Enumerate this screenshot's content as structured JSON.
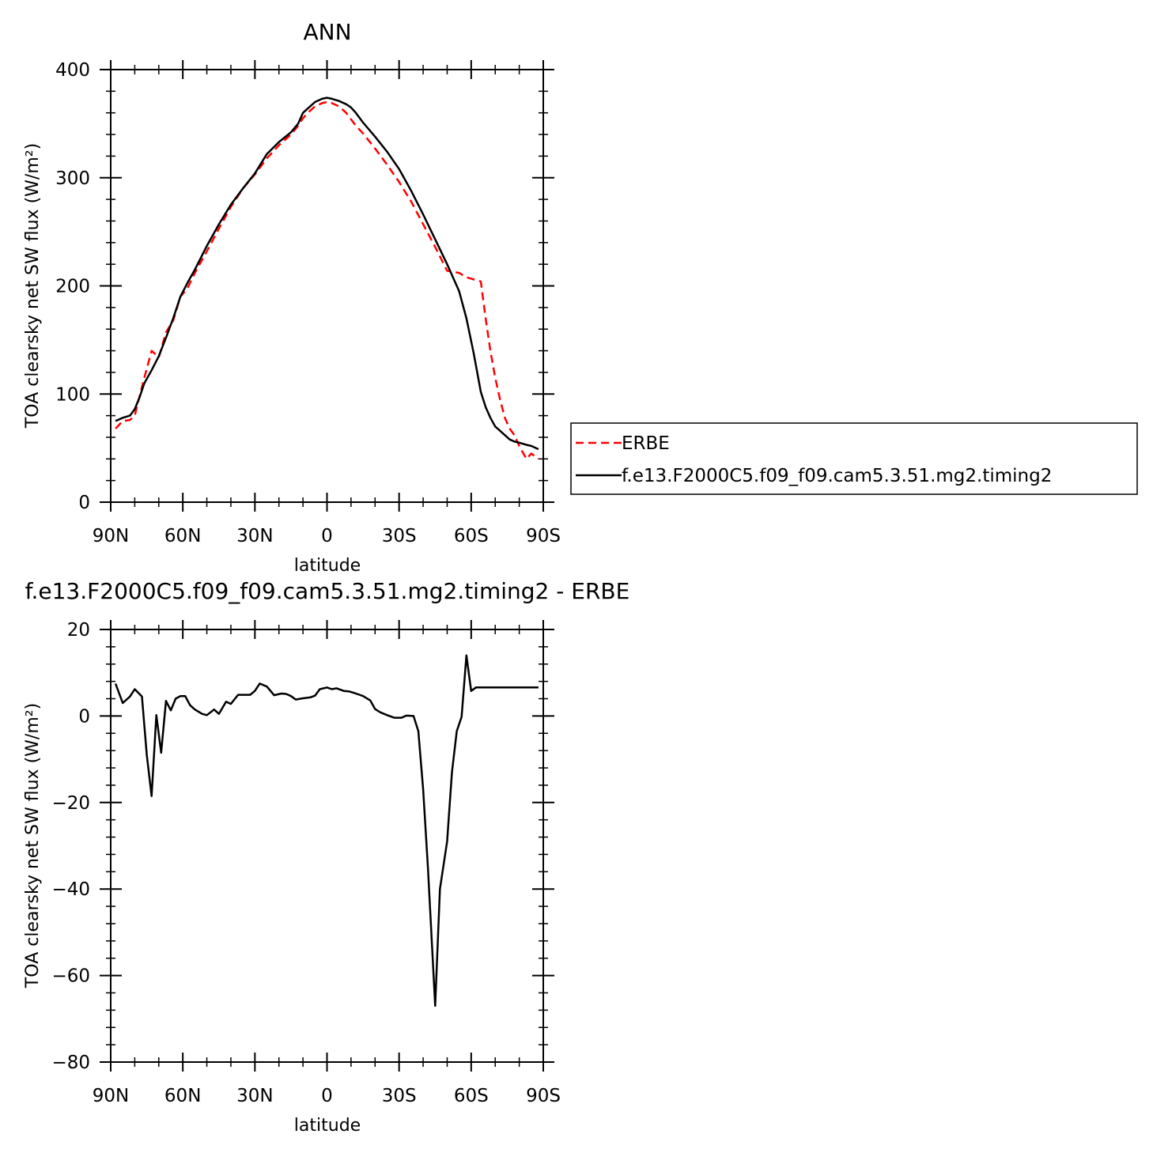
{
  "chart_data": [
    {
      "type": "line",
      "title": "ANN",
      "xlabel": "latitude",
      "ylabel": "TOA clearsky net SW flux (W/m²)",
      "xlim": [
        90,
        -90
      ],
      "ylim": [
        0,
        400
      ],
      "x_ticks": [
        90,
        60,
        30,
        0,
        -30,
        -60,
        -90
      ],
      "x_tick_labels": [
        "90N",
        "60N",
        "30N",
        "0",
        "30S",
        "60S",
        "90S"
      ],
      "y_ticks": [
        0,
        100,
        200,
        300,
        400
      ],
      "y_tick_labels": [
        "0",
        "100",
        "200",
        "300",
        "400"
      ],
      "legend_position": "right",
      "series": [
        {
          "name": "ERBE",
          "color": "#ff0000",
          "dash": "dashed",
          "x": [
            88,
            85,
            82,
            80,
            78,
            76,
            73,
            70,
            67,
            64,
            61,
            58,
            55,
            50,
            45,
            40,
            35,
            30,
            25,
            20,
            15,
            12,
            10,
            8,
            5,
            2,
            0,
            -2,
            -5,
            -8,
            -10,
            -12,
            -15,
            -20,
            -25,
            -30,
            -35,
            -40,
            -45,
            -50,
            -55,
            -58,
            -61,
            -64,
            -66,
            -68,
            -70,
            -72,
            -74,
            -76,
            -78,
            -80,
            -83,
            -85,
            -88
          ],
          "y": [
            68,
            75,
            76,
            80,
            98,
            115,
            140,
            134,
            157,
            168,
            190,
            198,
            212,
            232,
            253,
            273,
            290,
            303,
            318,
            330,
            340,
            348,
            355,
            360,
            366,
            369,
            370,
            369,
            366,
            360,
            354,
            348,
            341,
            327,
            312,
            296,
            278,
            257,
            236,
            214,
            212,
            208,
            206,
            204,
            170,
            140,
            115,
            95,
            78,
            68,
            62,
            52,
            40,
            45,
            40
          ]
        },
        {
          "name": "f.e13.F2000C5.f09_f09.cam5.3.51.mg2.timing2",
          "color": "#000000",
          "dash": "solid",
          "x": [
            88,
            85,
            82,
            80,
            78,
            76,
            73,
            70,
            67,
            64,
            61,
            58,
            55,
            50,
            45,
            40,
            35,
            30,
            25,
            20,
            15,
            12,
            10,
            8,
            5,
            2,
            0,
            -2,
            -5,
            -8,
            -10,
            -12,
            -15,
            -20,
            -25,
            -30,
            -35,
            -40,
            -45,
            -50,
            -55,
            -58,
            -61,
            -64,
            -66,
            -68,
            -70,
            -72,
            -74,
            -76,
            -78,
            -80,
            -83,
            -85,
            -88
          ],
          "y": [
            75,
            78,
            80,
            86,
            97,
            110,
            122,
            135,
            152,
            170,
            190,
            203,
            215,
            237,
            257,
            275,
            290,
            304,
            322,
            333,
            342,
            350,
            360,
            364,
            370,
            373,
            374,
            373,
            371,
            368,
            365,
            360,
            351,
            338,
            324,
            308,
            288,
            266,
            243,
            220,
            195,
            170,
            138,
            102,
            88,
            78,
            70,
            66,
            62,
            58,
            56,
            55,
            53,
            52,
            49
          ]
        }
      ]
    },
    {
      "type": "line",
      "title": "f.e13.F2000C5.f09_f09.cam5.3.51.mg2.timing2 - ERBE",
      "xlabel": "latitude",
      "ylabel": "TOA clearsky net SW flux (W/m²)",
      "xlim": [
        90,
        -90
      ],
      "ylim": [
        -80,
        20
      ],
      "x_ticks": [
        90,
        60,
        30,
        0,
        -30,
        -60,
        -90
      ],
      "x_tick_labels": [
        "90N",
        "60N",
        "30N",
        "0",
        "30S",
        "60S",
        "90S"
      ],
      "y_ticks": [
        -80,
        -60,
        -40,
        -20,
        0,
        20
      ],
      "y_tick_labels": [
        "−80",
        "−60",
        "−40",
        "−20",
        "0",
        "20"
      ],
      "series": [
        {
          "color": "#000000",
          "dash": "solid",
          "x": [
            88,
            85,
            82,
            80,
            77,
            75,
            73,
            71,
            69,
            67,
            65,
            63,
            61,
            59,
            57,
            55,
            52,
            50,
            47,
            45,
            42,
            40,
            37,
            35,
            32,
            30,
            28,
            25,
            22,
            19,
            17,
            15,
            13,
            10,
            7,
            5,
            3,
            0,
            -2,
            -4,
            -7,
            -9,
            -11,
            -13,
            -15,
            -18,
            -20,
            -22,
            -25,
            -28,
            -31,
            -33,
            -36,
            -38,
            -40,
            -42,
            -45,
            -47,
            -50,
            -52,
            -54,
            -56,
            -58,
            -60,
            -62,
            -64,
            -66,
            -68,
            -70,
            -72,
            -74,
            -76,
            -78,
            -80,
            -82,
            -84,
            -86,
            -88
          ],
          "y": [
            7.5,
            3.0,
            4.5,
            6.2,
            4.5,
            -9.0,
            -18.5,
            0.2,
            -8.5,
            3.5,
            1.3,
            4.0,
            4.6,
            4.6,
            2.5,
            1.5,
            0.5,
            0.2,
            1.5,
            0.5,
            3.3,
            2.8,
            4.9,
            4.9,
            4.9,
            5.8,
            7.5,
            6.8,
            4.8,
            5.2,
            5.1,
            4.6,
            3.8,
            4.1,
            4.3,
            4.7,
            6.2,
            6.6,
            6.2,
            6.4,
            5.8,
            5.7,
            5.4,
            5.0,
            4.6,
            3.6,
            1.6,
            0.9,
            0.2,
            -0.4,
            -0.4,
            0.1,
            0.0,
            -3.5,
            -17.0,
            -35.0,
            -67.0,
            -40.0,
            -29.0,
            -13.0,
            -3.5,
            -0.2,
            14.0,
            5.8,
            6.6,
            6.6,
            6.6,
            6.6,
            6.6,
            6.6,
            6.6,
            6.6,
            6.6,
            6.6,
            6.6,
            6.6,
            6.6,
            6.6
          ]
        }
      ]
    }
  ]
}
